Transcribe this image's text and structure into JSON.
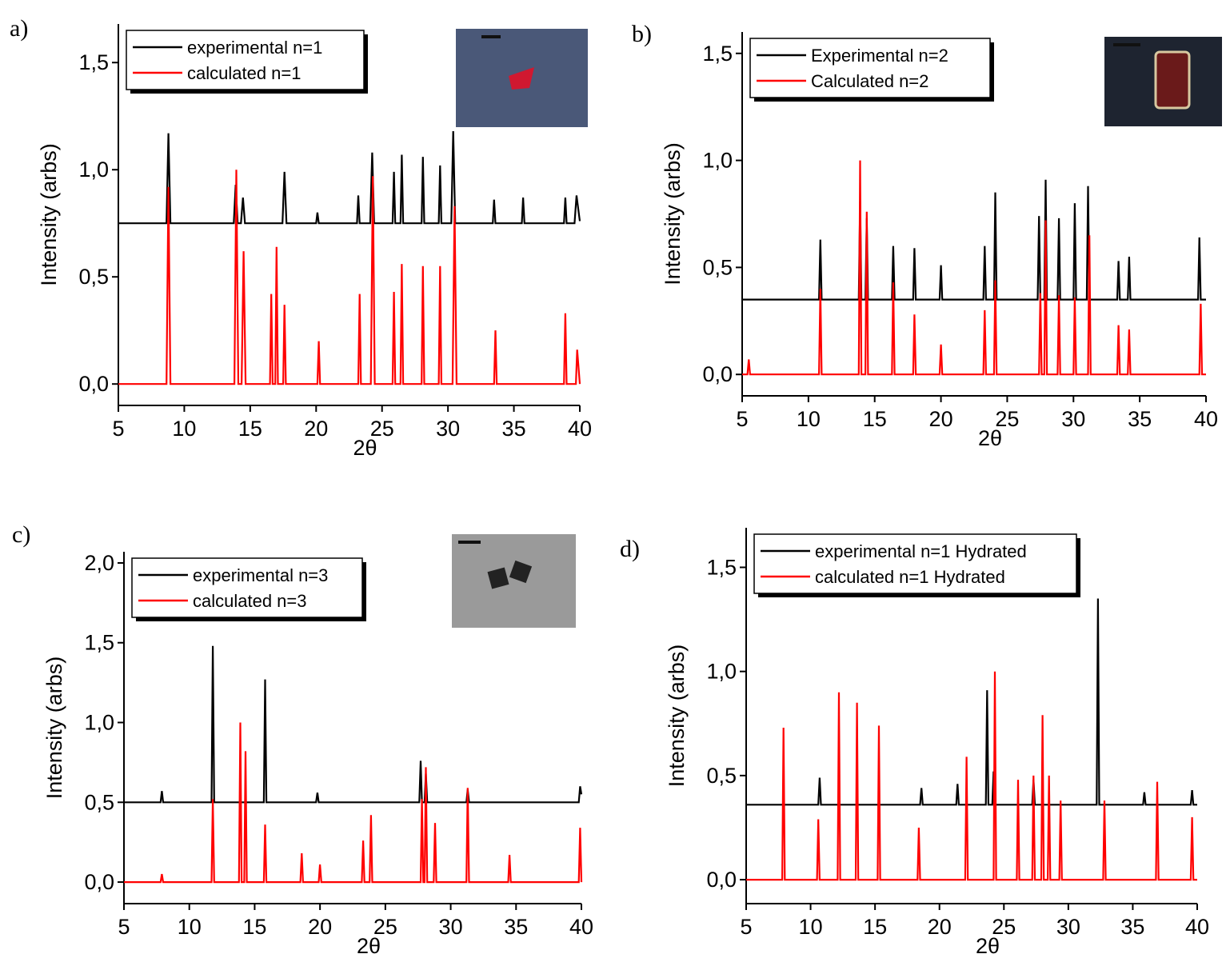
{
  "chart_data": [
    {
      "type": "line",
      "panel_label": "a)",
      "x_label": "2θ",
      "y_label": "Intensity (arbs)",
      "xlim": [
        5,
        40
      ],
      "xticks": [
        5,
        10,
        15,
        20,
        25,
        30,
        35,
        40
      ],
      "ylim": [
        -0.1,
        1.68
      ],
      "yticks": [
        {
          "value": 0,
          "label": "0,0"
        },
        {
          "value": 0.5,
          "label": "0,5"
        },
        {
          "value": 1,
          "label": "1,0"
        },
        {
          "value": 1.5,
          "label": "1,5"
        }
      ],
      "legend": "top-left",
      "series": [
        {
          "name": "experimental n=1",
          "color": "#000000",
          "x": [
            5,
            8.65,
            8.8,
            8.95,
            13.75,
            13.9,
            14.05,
            14.3,
            14.45,
            14.6,
            17.45,
            17.6,
            17.75,
            20,
            20.1,
            20.2,
            23.1,
            23.2,
            23.3,
            24.1,
            24.25,
            24.4,
            25.8,
            25.9,
            26,
            26.4,
            26.5,
            26.6,
            28,
            28.1,
            28.2,
            29.3,
            29.4,
            29.5,
            30.25,
            30.4,
            30.55,
            33.4,
            33.5,
            33.6,
            35.6,
            35.7,
            35.8,
            38.8,
            38.9,
            39,
            39.6,
            39.75,
            40
          ],
          "values": [
            0.75,
            0.75,
            1.17,
            0.75,
            0.75,
            0.93,
            0.75,
            0.75,
            0.87,
            0.75,
            0.75,
            0.99,
            0.75,
            0.75,
            0.8,
            0.75,
            0.75,
            0.88,
            0.75,
            0.75,
            1.08,
            0.75,
            0.75,
            0.99,
            0.75,
            0.75,
            1.07,
            0.75,
            0.75,
            1.06,
            0.75,
            0.75,
            1.02,
            0.75,
            0.75,
            1.18,
            0.75,
            0.75,
            0.86,
            0.75,
            0.75,
            0.87,
            0.75,
            0.75,
            0.87,
            0.75,
            0.75,
            0.88,
            0.76
          ]
        },
        {
          "name": "calculated n=1",
          "color": "#ff0000",
          "x": [
            5,
            8.65,
            8.8,
            8.95,
            13.8,
            13.95,
            14.1,
            14.35,
            14.5,
            14.65,
            16.5,
            16.6,
            16.7,
            16.9,
            17,
            17.1,
            17.5,
            17.6,
            17.7,
            20.1,
            20.2,
            20.3,
            23.2,
            23.3,
            23.4,
            24.15,
            24.3,
            24.45,
            25.8,
            25.9,
            26,
            26.4,
            26.5,
            26.6,
            28,
            28.1,
            28.2,
            29.3,
            29.4,
            29.5,
            30.35,
            30.5,
            30.65,
            33.5,
            33.6,
            33.7,
            38.8,
            38.9,
            39,
            39.7,
            39.8,
            40
          ],
          "values": [
            0,
            0,
            0.92,
            0,
            0,
            1,
            0,
            0,
            0.62,
            0,
            0,
            0.42,
            0,
            0,
            0.64,
            0,
            0,
            0.37,
            0,
            0,
            0.2,
            0,
            0,
            0.42,
            0,
            0,
            0.97,
            0,
            0,
            0.43,
            0,
            0,
            0.56,
            0,
            0,
            0.55,
            0,
            0,
            0.55,
            0,
            0,
            0.83,
            0,
            0,
            0.25,
            0,
            0,
            0.33,
            0,
            0,
            0.16,
            0
          ]
        }
      ]
    },
    {
      "type": "line",
      "panel_label": "b)",
      "x_label": "2θ",
      "y_label": "Intensity (arbs)",
      "xlim": [
        5,
        40
      ],
      "xticks": [
        5,
        10,
        15,
        20,
        25,
        30,
        35,
        40
      ],
      "ylim": [
        -0.1,
        1.6
      ],
      "yticks": [
        {
          "value": 0,
          "label": "0,0"
        },
        {
          "value": 0.5,
          "label": "0,5"
        },
        {
          "value": 1,
          "label": "1,0"
        },
        {
          "value": 1.5,
          "label": "1,5"
        }
      ],
      "legend": "top-left",
      "series": [
        {
          "name": "Experimental n=2",
          "color": "#000000",
          "x": [
            5,
            10.8,
            10.9,
            11,
            13.8,
            13.9,
            14,
            14.3,
            14.4,
            14.5,
            16.3,
            16.4,
            16.5,
            17.9,
            18,
            18.1,
            19.9,
            20,
            20.1,
            23.2,
            23.3,
            23.4,
            24,
            24.1,
            24.2,
            27.3,
            27.4,
            27.5,
            27.8,
            27.9,
            28,
            28.8,
            28.9,
            29,
            30,
            30.1,
            30.2,
            31,
            31.1,
            31.2,
            33.3,
            33.4,
            33.5,
            34.1,
            34.2,
            34.3,
            39.4,
            39.5,
            39.6,
            40
          ],
          "values": [
            0.35,
            0.35,
            0.63,
            0.35,
            0.35,
            0.81,
            0.35,
            0.35,
            0.73,
            0.35,
            0.35,
            0.6,
            0.35,
            0.35,
            0.59,
            0.35,
            0.35,
            0.51,
            0.35,
            0.35,
            0.6,
            0.35,
            0.35,
            0.85,
            0.35,
            0.35,
            0.74,
            0.35,
            0.35,
            0.91,
            0.35,
            0.35,
            0.73,
            0.35,
            0.35,
            0.8,
            0.35,
            0.35,
            0.88,
            0.35,
            0.35,
            0.53,
            0.35,
            0.35,
            0.55,
            0.35,
            0.35,
            0.64,
            0.35,
            0.35
          ]
        },
        {
          "name": "Calculated n=2",
          "color": "#ff0000",
          "x": [
            5,
            5.4,
            5.5,
            5.6,
            10.8,
            10.9,
            11,
            13.8,
            13.9,
            14,
            14.3,
            14.4,
            14.5,
            16.3,
            16.4,
            16.5,
            17.9,
            18,
            18.1,
            19.9,
            20,
            20.1,
            23.2,
            23.3,
            23.4,
            24,
            24.1,
            24.2,
            27.4,
            27.5,
            27.6,
            27.8,
            27.9,
            28,
            28.8,
            28.9,
            29,
            30,
            30.1,
            30.2,
            31.1,
            31.2,
            31.3,
            33.3,
            33.4,
            33.5,
            34.1,
            34.2,
            34.3,
            39.5,
            39.6,
            39.7,
            40
          ],
          "values": [
            0,
            0,
            0.07,
            0,
            0,
            0.4,
            0,
            0,
            1,
            0,
            0,
            0.76,
            0,
            0,
            0.43,
            0,
            0,
            0.28,
            0,
            0,
            0.14,
            0,
            0,
            0.3,
            0,
            0,
            0.44,
            0,
            0,
            0.38,
            0,
            0,
            0.72,
            0,
            0,
            0.37,
            0,
            0,
            0.36,
            0,
            0,
            0.65,
            0,
            0,
            0.23,
            0,
            0,
            0.21,
            0,
            0,
            0.33,
            0,
            0
          ]
        }
      ]
    },
    {
      "type": "line",
      "panel_label": "c)",
      "x_label": "2θ",
      "y_label": "Intensity (arbs)",
      "xlim": [
        5,
        40
      ],
      "xticks": [
        5,
        10,
        15,
        20,
        25,
        30,
        35,
        40
      ],
      "ylim": [
        -0.135,
        2.07
      ],
      "yticks": [
        {
          "value": 0,
          "label": "0,0"
        },
        {
          "value": 0.5,
          "label": "0,5"
        },
        {
          "value": 1,
          "label": "1,0"
        },
        {
          "value": 1.5,
          "label": "1,5"
        },
        {
          "value": 2,
          "label": "2,0"
        }
      ],
      "legend": "top-left",
      "series": [
        {
          "name": "experimental n=3",
          "color": "#000000",
          "x": [
            5,
            7.8,
            7.9,
            8,
            11.7,
            11.8,
            11.9,
            15.7,
            15.8,
            15.9,
            19.7,
            19.8,
            19.9,
            27.6,
            27.7,
            27.8,
            28,
            28.1,
            28.2,
            31.2,
            31.3,
            31.4,
            39.8,
            39.9,
            40
          ],
          "values": [
            0.5,
            0.5,
            0.57,
            0.5,
            0.5,
            1.48,
            0.5,
            0.5,
            1.27,
            0.5,
            0.5,
            0.56,
            0.5,
            0.5,
            0.76,
            0.5,
            0.5,
            0.68,
            0.5,
            0.5,
            0.58,
            0.5,
            0.5,
            0.6,
            0.55
          ]
        },
        {
          "name": "calculated n=3",
          "color": "#ff0000",
          "x": [
            5,
            7.8,
            7.9,
            8,
            11.7,
            11.8,
            11.9,
            13.8,
            13.9,
            14,
            14.2,
            14.3,
            14.4,
            15.7,
            15.8,
            15.9,
            18.5,
            18.6,
            18.7,
            19.9,
            20,
            20.1,
            23.2,
            23.3,
            23.4,
            23.8,
            23.9,
            24,
            27.7,
            27.8,
            27.9,
            28,
            28.1,
            28.2,
            28.7,
            28.8,
            28.9,
            31.2,
            31.3,
            31.4,
            34.4,
            34.5,
            34.6,
            39.8,
            39.9,
            40
          ],
          "values": [
            0,
            0,
            0.05,
            0,
            0,
            0.52,
            0,
            0,
            1,
            0,
            0,
            0.82,
            0,
            0,
            0.36,
            0,
            0,
            0.18,
            0,
            0,
            0.11,
            0,
            0,
            0.26,
            0,
            0,
            0.42,
            0,
            0,
            0.52,
            0,
            0,
            0.72,
            0,
            0,
            0.37,
            0,
            0,
            0.59,
            0,
            0,
            0.17,
            0,
            0,
            0.34,
            0
          ]
        }
      ]
    },
    {
      "type": "line",
      "panel_label": "d)",
      "x_label": "2θ",
      "y_label": "Intensity (arbs)",
      "xlim": [
        5,
        40
      ],
      "xticks": [
        5,
        10,
        15,
        20,
        25,
        30,
        35,
        40
      ],
      "ylim": [
        -0.115,
        1.69
      ],
      "yticks": [
        {
          "value": 0,
          "label": "0,0"
        },
        {
          "value": 0.5,
          "label": "0,5"
        },
        {
          "value": 1,
          "label": "1,0"
        },
        {
          "value": 1.5,
          "label": "1,5"
        }
      ],
      "legend": "top-left",
      "series": [
        {
          "name": "experimental n=1 Hydrated",
          "color": "#000000",
          "x": [
            5,
            10.6,
            10.7,
            10.8,
            18.5,
            18.6,
            18.7,
            21.3,
            21.4,
            21.5,
            23.6,
            23.7,
            23.8,
            24.1,
            24.2,
            24.3,
            27.2,
            27.3,
            27.4,
            32.2,
            32.3,
            32.4,
            35.8,
            35.9,
            36,
            39.5,
            39.6,
            39.7,
            40
          ],
          "values": [
            0.36,
            0.36,
            0.49,
            0.36,
            0.36,
            0.44,
            0.36,
            0.36,
            0.46,
            0.36,
            0.36,
            0.91,
            0.36,
            0.36,
            0.52,
            0.36,
            0.36,
            0.48,
            0.36,
            0.36,
            1.35,
            0.36,
            0.36,
            0.42,
            0.36,
            0.36,
            0.43,
            0.36,
            0.36
          ]
        },
        {
          "name": "calculated n=1 Hydrated",
          "color": "#ff0000",
          "x": [
            5,
            7.8,
            7.9,
            8,
            10.5,
            10.6,
            10.7,
            12.1,
            12.2,
            12.3,
            13.5,
            13.6,
            13.7,
            15.2,
            15.3,
            15.4,
            18.3,
            18.4,
            18.5,
            22,
            22.1,
            22.2,
            24.2,
            24.3,
            24.4,
            26,
            26.1,
            26.2,
            27.2,
            27.3,
            27.4,
            27.9,
            28,
            28.1,
            28.4,
            28.5,
            28.6,
            29.3,
            29.4,
            29.5,
            32.7,
            32.8,
            32.9,
            36.8,
            36.9,
            37,
            39.5,
            39.6,
            39.7,
            40
          ],
          "values": [
            0,
            0,
            0.73,
            0,
            0,
            0.29,
            0,
            0,
            0.9,
            0,
            0,
            0.85,
            0,
            0,
            0.74,
            0,
            0,
            0.25,
            0,
            0,
            0.59,
            0,
            0,
            1,
            0,
            0,
            0.48,
            0,
            0,
            0.5,
            0,
            0,
            0.79,
            0,
            0,
            0.5,
            0,
            0,
            0.38,
            0,
            0,
            0.38,
            0,
            0,
            0.47,
            0,
            0,
            0.3,
            0,
            0
          ]
        }
      ]
    }
  ]
}
